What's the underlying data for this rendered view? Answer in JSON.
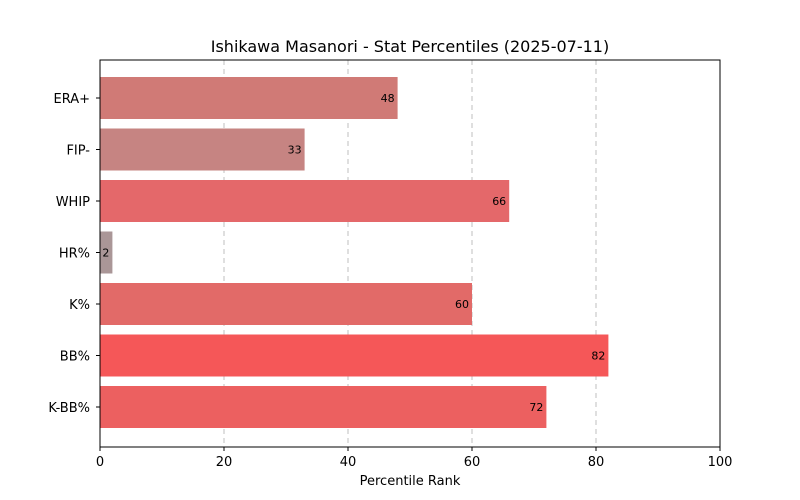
{
  "chart_data": {
    "type": "bar",
    "orientation": "horizontal",
    "title": "Ishikawa Masanori - Stat Percentiles (2025-07-11)",
    "xlabel": "Percentile Rank",
    "ylabel": "",
    "xlim": [
      0,
      100
    ],
    "xticks": [
      0,
      20,
      40,
      60,
      80,
      100
    ],
    "grid": "x-dashed",
    "categories": [
      "ERA+",
      "FIP-",
      "WHIP",
      "HR%",
      "K%",
      "BB%",
      "K-BB%"
    ],
    "values": [
      48,
      33,
      66,
      2,
      60,
      82,
      72
    ],
    "colors": [
      "#d07a76",
      "#c68482",
      "#e4686a",
      "#aa9697",
      "#e26a68",
      "#f55758",
      "#ec6060"
    ]
  }
}
